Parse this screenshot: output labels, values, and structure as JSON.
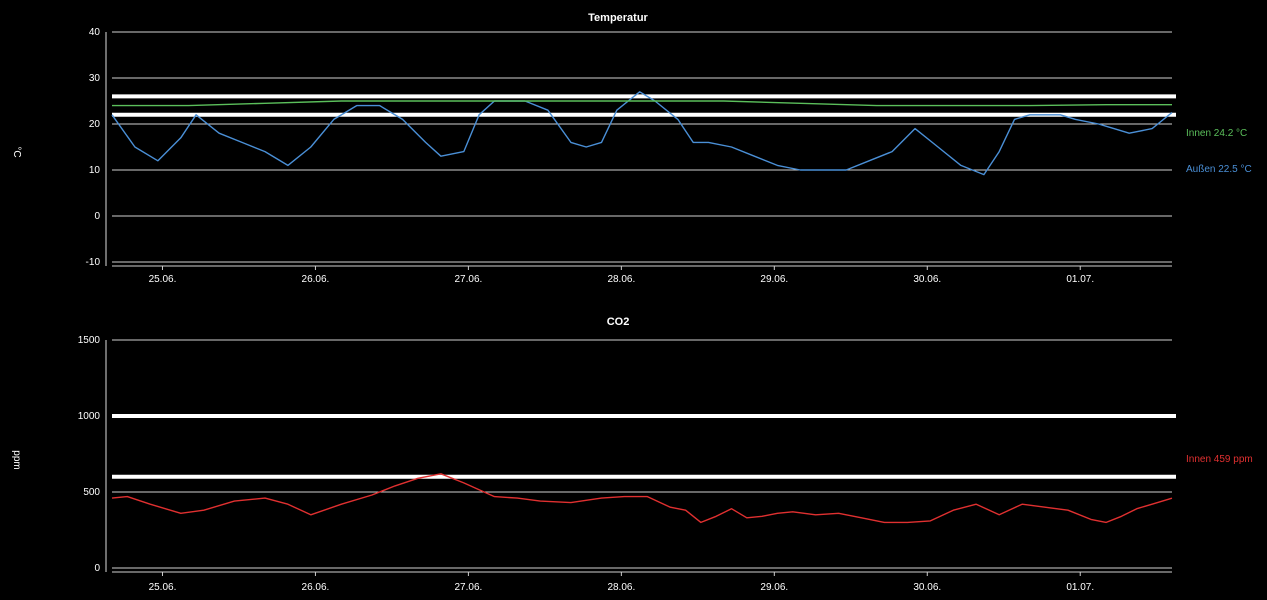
{
  "charts": [
    {
      "chart_data": {
        "type": "line",
        "title": "Temperatur",
        "ylabel": "°C",
        "ylim": [
          -10,
          40
        ],
        "yticks": [
          "40",
          "30",
          "20",
          "10",
          "0",
          "-10"
        ],
        "xrange_days": [
          0,
          6.93
        ],
        "x_ticks": [
          {
            "label": "25.06.",
            "at": 0.33
          },
          {
            "label": "26.06.",
            "at": 1.33
          },
          {
            "label": "27.06.",
            "at": 2.33
          },
          {
            "label": "28.06.",
            "at": 3.33
          },
          {
            "label": "29.06.",
            "at": 4.33
          },
          {
            "label": "30.06.",
            "at": 5.33
          },
          {
            "label": "01.07.",
            "at": 6.33
          }
        ],
        "threshold_lines": [
          26,
          22
        ],
        "series": [
          {
            "name": "Außen",
            "color": "#4a8fd6",
            "label": "Außen 22.5 °C",
            "x": [
              0,
              0.15,
              0.3,
              0.45,
              0.55,
              0.7,
              0.85,
              1.0,
              1.15,
              1.3,
              1.45,
              1.6,
              1.75,
              1.9,
              2.05,
              2.15,
              2.3,
              2.4,
              2.5,
              2.6,
              2.7,
              2.85,
              3.0,
              3.1,
              3.2,
              3.3,
              3.45,
              3.55,
              3.7,
              3.8,
              3.9,
              4.05,
              4.2,
              4.35,
              4.5,
              4.65,
              4.8,
              4.95,
              5.1,
              5.25,
              5.4,
              5.55,
              5.7,
              5.8,
              5.9,
              6.0,
              6.1,
              6.2,
              6.3,
              6.45,
              6.55,
              6.65,
              6.8,
              6.93
            ],
            "values": [
              22,
              15,
              12,
              17,
              22,
              18,
              16,
              14,
              11,
              15,
              21,
              24,
              24,
              21,
              16,
              13,
              14,
              22,
              25,
              25,
              25,
              23,
              16,
              15,
              16,
              23,
              27,
              25,
              21,
              16,
              16,
              15,
              13,
              11,
              10,
              10,
              10,
              12,
              14,
              19,
              15,
              11,
              9,
              14,
              21,
              22,
              22,
              22,
              21,
              20,
              19,
              18,
              19,
              22.5
            ]
          },
          {
            "name": "Innen",
            "color": "#5bbf5b",
            "label": "Innen 24.2 °C",
            "x": [
              0,
              0.5,
              1.0,
              1.5,
              2.0,
              2.5,
              3.0,
              3.5,
              4.0,
              4.5,
              5.0,
              5.5,
              6.0,
              6.5,
              6.93
            ],
            "values": [
              24,
              24,
              24.5,
              25,
              25,
              25,
              25,
              25,
              25,
              24.5,
              24,
              24,
              24,
              24.2,
              24.2
            ]
          }
        ]
      }
    },
    {
      "chart_data": {
        "type": "line",
        "title": "CO2",
        "ylabel": "ppm",
        "ylim": [
          0,
          1500
        ],
        "yticks": [
          "1500",
          "1000",
          "500",
          "0"
        ],
        "xrange_days": [
          0,
          6.93
        ],
        "x_ticks": [
          {
            "label": "25.06.",
            "at": 0.33
          },
          {
            "label": "26.06.",
            "at": 1.33
          },
          {
            "label": "27.06.",
            "at": 2.33
          },
          {
            "label": "28.06.",
            "at": 3.33
          },
          {
            "label": "29.06.",
            "at": 4.33
          },
          {
            "label": "30.06.",
            "at": 5.33
          },
          {
            "label": "01.07.",
            "at": 6.33
          }
        ],
        "threshold_lines": [
          1000,
          600
        ],
        "series": [
          {
            "name": "Innen",
            "color": "#e03030",
            "label": "Innen 459 ppm",
            "x": [
              0,
              0.1,
              0.25,
              0.45,
              0.6,
              0.8,
              1.0,
              1.15,
              1.3,
              1.5,
              1.7,
              1.85,
              2.0,
              2.15,
              2.3,
              2.5,
              2.65,
              2.8,
              3.0,
              3.2,
              3.35,
              3.5,
              3.65,
              3.75,
              3.85,
              3.95,
              4.05,
              4.15,
              4.25,
              4.35,
              4.45,
              4.6,
              4.75,
              4.9,
              5.05,
              5.2,
              5.35,
              5.5,
              5.65,
              5.8,
              5.95,
              6.1,
              6.25,
              6.4,
              6.5,
              6.6,
              6.7,
              6.8,
              6.93
            ],
            "values": [
              460,
              470,
              420,
              360,
              380,
              440,
              460,
              420,
              350,
              420,
              480,
              540,
              590,
              620,
              560,
              470,
              460,
              440,
              430,
              460,
              470,
              470,
              400,
              380,
              300,
              340,
              390,
              330,
              340,
              360,
              370,
              350,
              360,
              330,
              300,
              300,
              310,
              380,
              420,
              350,
              420,
              400,
              380,
              320,
              300,
              340,
              390,
              420,
              459
            ]
          }
        ]
      }
    }
  ]
}
